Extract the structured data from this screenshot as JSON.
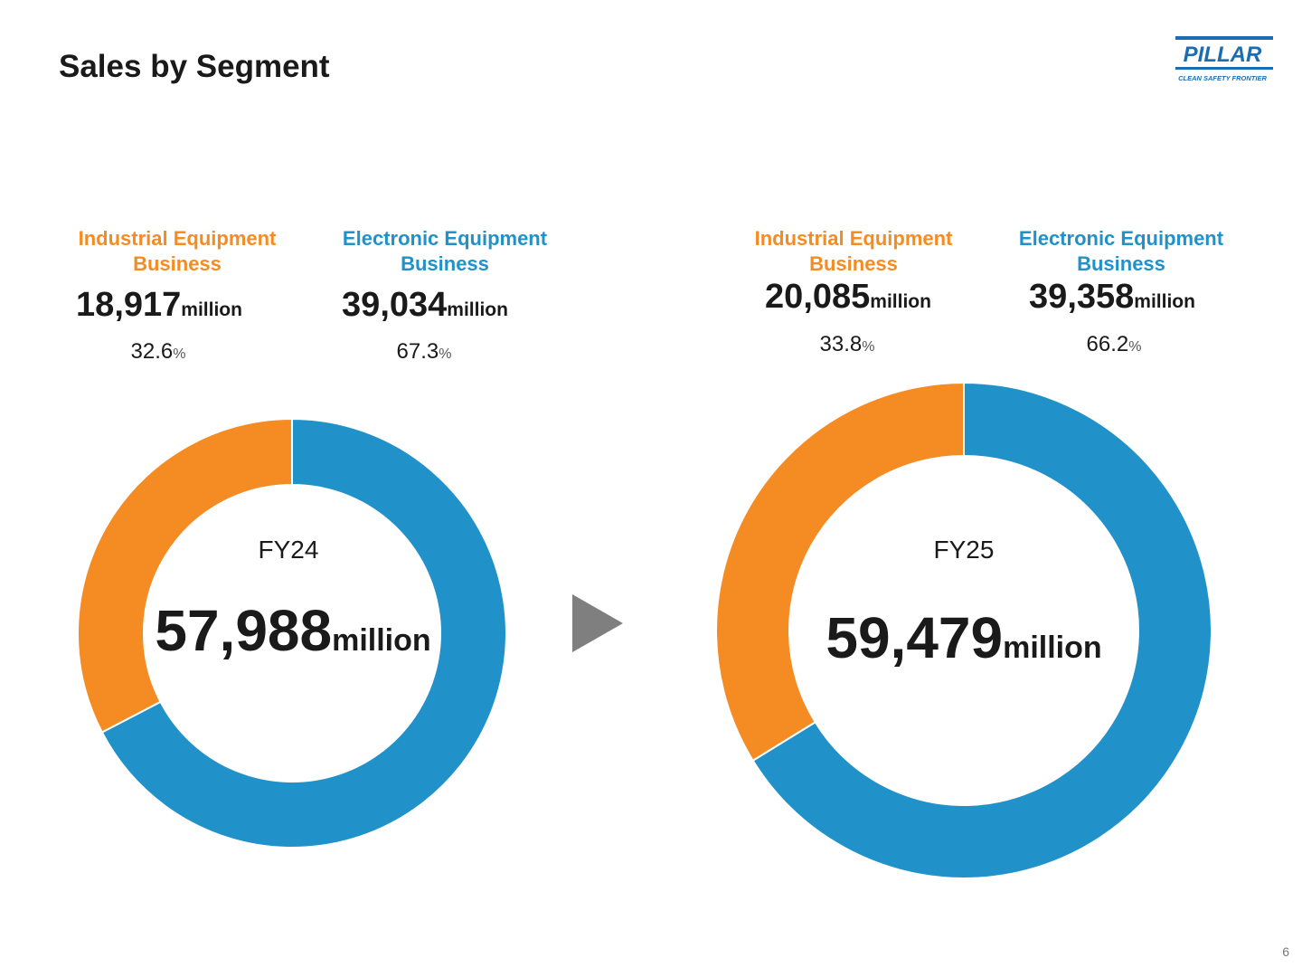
{
  "page": {
    "title": "Sales by Segment",
    "page_number": "6"
  },
  "logo": {
    "name": "PILLAR",
    "tagline": "CLEAN SAFETY FRONTIER",
    "color": "#1b6db3"
  },
  "colors": {
    "industrial": "#f58c23",
    "electronic": "#2192c9"
  },
  "fy24": {
    "label": "FY24",
    "total": "57,988",
    "unit": "million",
    "industrial": {
      "name_line1": "Industrial Equipment",
      "name_line2": "Business",
      "value": "18,917",
      "unit": "million",
      "share": "32.6",
      "pct": "%"
    },
    "electronic": {
      "name_line1": "Electronic Equipment",
      "name_line2": "Business",
      "value": "39,034",
      "unit": "million",
      "share": "67.3",
      "pct": "%"
    }
  },
  "fy25": {
    "label": "FY25",
    "total": "59,479",
    "unit": "million",
    "industrial": {
      "name_line1": "Industrial Equipment",
      "name_line2": "Business",
      "value": "20,085",
      "unit": "million",
      "share": "33.8",
      "pct": "%"
    },
    "electronic": {
      "name_line1": "Electronic Equipment",
      "name_line2": "Business",
      "value": "39,358",
      "unit": "million",
      "share": "66.2",
      "pct": "%"
    }
  },
  "chart_data": [
    {
      "type": "pie",
      "donut": true,
      "title": "FY24",
      "total": 57988,
      "categories": [
        "Industrial Equipment Business",
        "Electronic Equipment Business"
      ],
      "values": [
        18917,
        39034
      ],
      "shares_percent": [
        32.6,
        67.3
      ],
      "colors": [
        "#f58c23",
        "#2192c9"
      ],
      "start": "12 o'clock",
      "direction": "counterclockwise for Industrial, clockwise for Electronic"
    },
    {
      "type": "pie",
      "donut": true,
      "title": "FY25",
      "total": 59479,
      "categories": [
        "Industrial Equipment Business",
        "Electronic Equipment Business"
      ],
      "values": [
        20085,
        39358
      ],
      "shares_percent": [
        33.8,
        66.2
      ],
      "colors": [
        "#f58c23",
        "#2192c9"
      ],
      "start": "12 o'clock",
      "direction": "counterclockwise for Industrial, clockwise for Electronic"
    }
  ]
}
